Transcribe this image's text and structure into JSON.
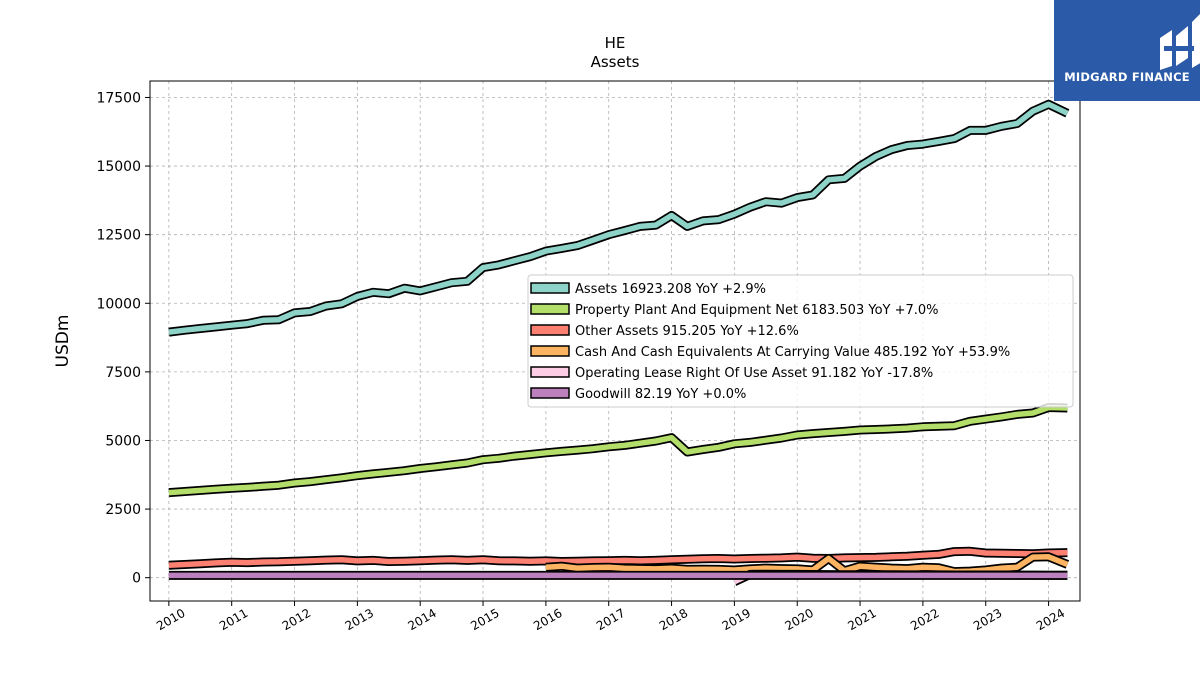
{
  "brand": {
    "name": "MIDGARD FINANCE",
    "logo_icon": "midgard-logo-icon",
    "background": "#2a5aa8"
  },
  "chart_data": {
    "type": "line",
    "title": "HE",
    "subtitle": "Assets",
    "xlabel": "",
    "ylabel": "USDm",
    "xlim": [
      2009.7,
      2024.5
    ],
    "ylim": [
      -850,
      18100
    ],
    "yticks": [
      0,
      2500,
      5000,
      7500,
      10000,
      12500,
      15000,
      17500
    ],
    "xticks": [
      "2010",
      "2011",
      "2012",
      "2013",
      "2014",
      "2015",
      "2016",
      "2017",
      "2018",
      "2019",
      "2020",
      "2021",
      "2022",
      "2023",
      "2024"
    ],
    "grid": true,
    "legend_position": "center-right",
    "series": [
      {
        "name": "Assets",
        "legend": "Assets  16923.208 YoY +2.9%",
        "color": "#8dd3c7",
        "x": [
          2010.0,
          2010.25,
          2010.5,
          2010.75,
          2011.0,
          2011.25,
          2011.5,
          2011.75,
          2012.0,
          2012.25,
          2012.5,
          2012.75,
          2013.0,
          2013.25,
          2013.5,
          2013.75,
          2014.0,
          2014.25,
          2014.5,
          2014.75,
          2015.0,
          2015.25,
          2015.5,
          2015.75,
          2016.0,
          2016.25,
          2016.5,
          2016.75,
          2017.0,
          2017.25,
          2017.5,
          2017.75,
          2018.0,
          2018.25,
          2018.5,
          2018.75,
          2019.0,
          2019.25,
          2019.5,
          2019.75,
          2020.0,
          2020.25,
          2020.5,
          2020.75,
          2021.0,
          2021.25,
          2021.5,
          2021.75,
          2022.0,
          2022.25,
          2022.5,
          2022.75,
          2023.0,
          2023.25,
          2023.5,
          2023.75,
          2024.0,
          2024.3
        ],
        "values": [
          8950,
          9020,
          9080,
          9140,
          9200,
          9260,
          9380,
          9400,
          9650,
          9700,
          9900,
          9980,
          10250,
          10400,
          10350,
          10550,
          10450,
          10600,
          10750,
          10800,
          11300,
          11400,
          11550,
          11700,
          11900,
          12000,
          12100,
          12300,
          12500,
          12650,
          12800,
          12850,
          13200,
          12800,
          13000,
          13050,
          13250,
          13500,
          13700,
          13650,
          13850,
          13950,
          14500,
          14550,
          15000,
          15350,
          15600,
          15750,
          15800,
          15900,
          16000,
          16300,
          16300,
          16450,
          16550,
          17000,
          17250,
          16923
        ]
      },
      {
        "name": "Property Plant And Equipment Net",
        "legend": "Property Plant And Equipment Net  6183.503 YoY +7.0%",
        "color": "#b3de69",
        "x": [
          2010.0,
          2010.25,
          2010.5,
          2010.75,
          2011.0,
          2011.25,
          2011.5,
          2011.75,
          2012.0,
          2012.25,
          2012.5,
          2012.75,
          2013.0,
          2013.25,
          2013.5,
          2013.75,
          2014.0,
          2014.25,
          2014.5,
          2014.75,
          2015.0,
          2015.25,
          2015.5,
          2015.75,
          2016.0,
          2016.25,
          2016.5,
          2016.75,
          2017.0,
          2017.25,
          2017.5,
          2017.75,
          2018.0,
          2018.25,
          2018.5,
          2018.75,
          2019.0,
          2019.25,
          2019.5,
          2019.75,
          2020.0,
          2020.25,
          2020.5,
          2020.75,
          2021.0,
          2021.25,
          2021.5,
          2021.75,
          2022.0,
          2022.25,
          2022.5,
          2022.75,
          2023.0,
          2023.25,
          2023.5,
          2023.75,
          2024.0,
          2024.3
        ],
        "values": [
          3100,
          3140,
          3180,
          3220,
          3260,
          3290,
          3330,
          3370,
          3450,
          3500,
          3570,
          3640,
          3720,
          3780,
          3840,
          3900,
          3980,
          4040,
          4110,
          4180,
          4300,
          4350,
          4430,
          4490,
          4550,
          4600,
          4650,
          4700,
          4770,
          4820,
          4900,
          4980,
          5100,
          4580,
          4670,
          4750,
          4880,
          4930,
          5010,
          5090,
          5200,
          5250,
          5290,
          5330,
          5380,
          5400,
          5420,
          5450,
          5500,
          5520,
          5540,
          5700,
          5780,
          5860,
          5950,
          6000,
          6200,
          6184
        ]
      },
      {
        "name": "Other Assets",
        "legend": "Other Assets  915.205 YoY +12.6%",
        "color": "#fb8072",
        "x": [
          2010.0,
          2010.25,
          2010.5,
          2010.75,
          2011.0,
          2011.25,
          2011.5,
          2011.75,
          2012.0,
          2012.25,
          2012.5,
          2012.75,
          2013.0,
          2013.25,
          2013.5,
          2013.75,
          2014.0,
          2014.25,
          2014.5,
          2014.75,
          2015.0,
          2015.25,
          2015.5,
          2015.75,
          2016.0,
          2016.25,
          2016.5,
          2016.75,
          2017.0,
          2017.25,
          2017.5,
          2017.75,
          2018.0,
          2018.25,
          2018.5,
          2018.75,
          2019.0,
          2019.25,
          2019.5,
          2019.75,
          2020.0,
          2020.25,
          2020.5,
          2020.75,
          2021.0,
          2021.25,
          2021.5,
          2021.75,
          2022.0,
          2022.25,
          2022.5,
          2022.75,
          2023.0,
          2023.25,
          2023.5,
          2023.75,
          2024.0,
          2024.3
        ],
        "values": [
          450,
          480,
          510,
          540,
          560,
          550,
          570,
          580,
          600,
          620,
          640,
          650,
          610,
          630,
          590,
          600,
          620,
          640,
          650,
          630,
          650,
          620,
          610,
          600,
          610,
          590,
          600,
          610,
          620,
          630,
          620,
          630,
          650,
          670,
          690,
          700,
          680,
          700,
          710,
          720,
          750,
          710,
          700,
          720,
          730,
          740,
          760,
          780,
          820,
          850,
          950,
          960,
          900,
          890,
          880,
          870,
          900,
          915
        ]
      },
      {
        "name": "Cash And Cash Equivalents At Carrying Value",
        "legend": "Cash And Cash Equivalents At Carrying Value  485.192 YoY +53.9%",
        "color": "#fdb462",
        "x": [
          2016.0,
          2016.25,
          2016.5,
          2016.75,
          2017.0,
          2017.25,
          2017.5,
          2017.75,
          2018.0,
          2018.25,
          2018.5,
          2018.75,
          2019.0,
          2019.25,
          2019.5,
          2019.75,
          2020.0,
          2020.25,
          2020.5,
          2020.75,
          2021.0,
          2021.25,
          2021.5,
          2021.75,
          2022.0,
          2022.25,
          2022.5,
          2022.75,
          2023.0,
          2023.25,
          2023.5,
          2023.75,
          2024.0,
          2024.3
        ],
        "values": [
          380,
          420,
          350,
          370,
          380,
          340,
          330,
          320,
          340,
          300,
          310,
          300,
          280,
          320,
          350,
          330,
          320,
          280,
          700,
          250,
          420,
          380,
          350,
          330,
          380,
          360,
          220,
          240,
          280,
          350,
          380,
          750,
          760,
          485
        ]
      },
      {
        "name": "Operating Lease Right Of Use Asset",
        "legend": "Operating Lease Right Of Use Asset  91.182 YoY -17.8%",
        "color": "#fccde5",
        "x": [
          2019.0,
          2019.25,
          2019.5,
          2019.75,
          2020.0,
          2020.25,
          2020.5,
          2020.75,
          2021.0,
          2021.25,
          2021.5,
          2021.75,
          2022.0,
          2022.25,
          2022.5,
          2022.75,
          2023.0,
          2023.25,
          2023.5,
          2023.75,
          2024.0,
          2024.3
        ],
        "values": [
          -150,
          120,
          125,
          120,
          118,
          115,
          112,
          110,
          108,
          106,
          104,
          102,
          100,
          100,
          99,
          98,
          97,
          96,
          95,
          94,
          92,
          91
        ]
      },
      {
        "name": "Goodwill",
        "legend": "Goodwill  82.19 YoY +0.0%",
        "color": "#bc80bd",
        "x": [
          2010.0,
          2024.3
        ],
        "values": [
          82,
          82
        ]
      }
    ]
  }
}
